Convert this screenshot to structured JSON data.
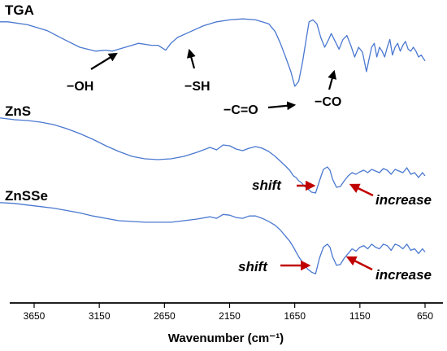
{
  "colors": {
    "spectrum": "#4a78d0",
    "arrow_black": "#000000",
    "arrow_red": "#c00000"
  },
  "chart_data": {
    "type": "line",
    "title": "",
    "xlabel": "Wavenumber (cm⁻¹)",
    "ylabel": "",
    "x_reversed": true,
    "xlim": [
      4000,
      600
    ],
    "x_ticks": [
      3650,
      3150,
      2650,
      2150,
      1650,
      1150,
      650
    ],
    "x_tick_labels": [
      "3650",
      "3150",
      "2650",
      "2150",
      "1650",
      "1150",
      "650"
    ],
    "y_offset_stacked": true,
    "series": [
      {
        "name": "TGA",
        "x": [
          4000,
          3850,
          3700,
          3550,
          3420,
          3300,
          3180,
          3100,
          3050,
          2950,
          2850,
          2750,
          2700,
          2640,
          2600,
          2550,
          2450,
          2350,
          2250,
          2150,
          2050,
          1950,
          1850,
          1800,
          1760,
          1720,
          1680,
          1650,
          1620,
          1590,
          1560,
          1540,
          1510,
          1480,
          1450,
          1420,
          1390,
          1370,
          1340,
          1310,
          1280,
          1250,
          1220,
          1190,
          1160,
          1130,
          1100,
          1080,
          1060,
          1040,
          1020,
          1000,
          980,
          960,
          940,
          920,
          900,
          880,
          860,
          840,
          820,
          800,
          780,
          760,
          740,
          720,
          700,
          680,
          660,
          650
        ],
        "y": [
          96,
          96,
          93,
          87,
          78,
          70,
          66,
          67,
          66,
          70,
          74,
          72,
          72,
          67,
          74,
          80,
          86,
          92,
          96,
          98,
          99,
          98,
          94,
          86,
          74,
          60,
          45,
          30,
          35,
          55,
          80,
          96,
          98,
          94,
          80,
          70,
          78,
          84,
          76,
          68,
          78,
          82,
          72,
          60,
          70,
          65,
          45,
          58,
          70,
          74,
          60,
          70,
          66,
          60,
          70,
          78,
          62,
          70,
          74,
          66,
          72,
          76,
          68,
          66,
          70,
          66,
          60,
          62,
          58,
          56
        ]
      },
      {
        "name": "ZnS",
        "x": [
          4000,
          3900,
          3800,
          3700,
          3600,
          3500,
          3400,
          3300,
          3200,
          3100,
          3000,
          2900,
          2800,
          2700,
          2600,
          2500,
          2400,
          2300,
          2250,
          2200,
          2150,
          2100,
          2050,
          2000,
          1950,
          1900,
          1850,
          1800,
          1760,
          1720,
          1690,
          1660,
          1640,
          1620,
          1600,
          1580,
          1550,
          1520,
          1490,
          1460,
          1430,
          1400,
          1380,
          1360,
          1330,
          1300,
          1270,
          1240,
          1210,
          1180,
          1150,
          1120,
          1090,
          1060,
          1030,
          1000,
          970,
          940,
          910,
          880,
          850,
          820,
          790,
          760,
          730,
          700,
          670,
          650
        ],
        "y": [
          98,
          97,
          95,
          94,
          92,
          89,
          84,
          78,
          71,
          63,
          56,
          50,
          47,
          46,
          47,
          50,
          55,
          61,
          58,
          64,
          63,
          59,
          57,
          60,
          62,
          60,
          56,
          50,
          44,
          38,
          33,
          26,
          24,
          20,
          18,
          14,
          10,
          6,
          5,
          20,
          34,
          37,
          33,
          22,
          12,
          13,
          20,
          26,
          30,
          28,
          31,
          33,
          30,
          34,
          32,
          30,
          35,
          33,
          28,
          34,
          32,
          30,
          36,
          28,
          30,
          24,
          30,
          26
        ]
      },
      {
        "name": "ZnSSe",
        "x": [
          4000,
          3900,
          3800,
          3700,
          3600,
          3500,
          3400,
          3300,
          3200,
          3100,
          3000,
          2900,
          2800,
          2700,
          2600,
          2500,
          2400,
          2300,
          2250,
          2200,
          2150,
          2100,
          2050,
          2000,
          1950,
          1900,
          1850,
          1800,
          1760,
          1720,
          1690,
          1660,
          1640,
          1620,
          1600,
          1580,
          1550,
          1520,
          1490,
          1460,
          1430,
          1400,
          1380,
          1360,
          1330,
          1300,
          1270,
          1240,
          1210,
          1180,
          1150,
          1120,
          1090,
          1060,
          1030,
          1000,
          970,
          940,
          910,
          880,
          850,
          820,
          790,
          760,
          730,
          700,
          670,
          650
        ],
        "y": [
          98,
          97,
          96,
          94,
          92,
          90,
          87,
          84,
          80,
          77,
          74,
          73,
          72,
          72,
          72,
          74,
          76,
          79,
          77,
          82,
          81,
          78,
          77,
          80,
          80,
          77,
          73,
          68,
          62,
          54,
          48,
          40,
          34,
          28,
          23,
          18,
          12,
          8,
          6,
          26,
          40,
          44,
          40,
          28,
          17,
          18,
          26,
          32,
          38,
          35,
          40,
          42,
          38,
          44,
          40,
          38,
          44,
          42,
          36,
          44,
          42,
          38,
          44,
          36,
          38,
          32,
          38,
          34
        ]
      }
    ],
    "annotations": [
      {
        "text": "−OH",
        "color": "black"
      },
      {
        "text": "−SH",
        "color": "black"
      },
      {
        "text": "−C=O",
        "color": "black"
      },
      {
        "text": "−CO",
        "color": "black"
      },
      {
        "text": "shift",
        "color": "red",
        "series": "ZnS"
      },
      {
        "text": "increase",
        "color": "red",
        "series": "ZnS"
      },
      {
        "text": "shift",
        "color": "red",
        "series": "ZnSSe"
      },
      {
        "text": "increase",
        "color": "red",
        "series": "ZnSSe"
      }
    ],
    "grid": false,
    "legend": "series labels at top-left of each trace"
  }
}
